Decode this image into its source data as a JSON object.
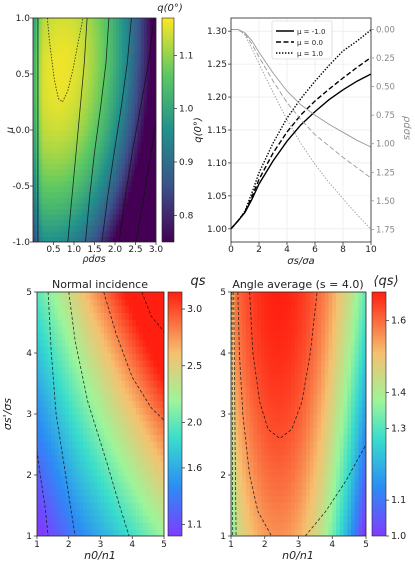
{
  "chart_data": [
    {
      "type": "heatmap",
      "xlabel": "ρdσs",
      "ylabel": "μ",
      "colorbar_label": "q(0°)",
      "xlim": [
        0.0,
        3.0
      ],
      "ylim": [
        -1.0,
        1.0
      ],
      "x_ticks": [
        "0.5",
        "1.0",
        "1.5",
        "2.0",
        "2.5",
        "3.0"
      ],
      "y_ticks": [
        "-1.0",
        "-0.5",
        "0.0",
        "0.5",
        "1.0"
      ],
      "colorbar_range": [
        0.75,
        1.17
      ],
      "colorbar_ticks": [
        "0.8",
        "0.9",
        "1.0",
        "1.1"
      ],
      "colormap": "viridis",
      "contour_minimum": {
        "x": 0.7,
        "y": 0.25,
        "value": 1.15
      }
    },
    {
      "type": "line",
      "xlabel": "σs/σa",
      "ylabel": "q(0°)",
      "ylabel_right": "ρdσs",
      "xlim": [
        0,
        10
      ],
      "ylim": [
        0.98,
        1.32
      ],
      "ylim_right": [
        1.86,
        -0.1
      ],
      "x_ticks": [
        "0",
        "2",
        "4",
        "6",
        "8",
        "10"
      ],
      "y_ticks": [
        "1.00",
        "1.05",
        "1.10",
        "1.15",
        "1.20",
        "1.25",
        "1.30"
      ],
      "y_ticks_right": [
        "0.00",
        "0.25",
        "0.50",
        "0.75",
        "1.00",
        "1.25",
        "1.50",
        "1.75"
      ],
      "grid": true,
      "legend_position": "top-center",
      "x": [
        0,
        0.5,
        1,
        1.5,
        2,
        3,
        4,
        5,
        6,
        7,
        8,
        9,
        10
      ],
      "series": [
        {
          "name": "μ = -1.0",
          "style": "solid",
          "axis": "left",
          "values": [
            1.0,
            1.012,
            1.025,
            1.045,
            1.068,
            1.103,
            1.133,
            1.158,
            1.178,
            1.196,
            1.211,
            1.224,
            1.235
          ]
        },
        {
          "name": "μ = 0.0",
          "style": "dashed",
          "axis": "left",
          "values": [
            1.0,
            1.012,
            1.026,
            1.049,
            1.075,
            1.115,
            1.147,
            1.173,
            1.194,
            1.212,
            1.229,
            1.245,
            1.26
          ]
        },
        {
          "name": "μ = 1.0",
          "style": "dotted",
          "axis": "left",
          "values": [
            1.0,
            1.012,
            1.027,
            1.055,
            1.085,
            1.13,
            1.168,
            1.198,
            1.224,
            1.248,
            1.27,
            1.285,
            1.302
          ]
        },
        {
          "name": "",
          "style": "solid",
          "axis": "right",
          "color": "#999999",
          "values": [
            0.0,
            0.0,
            0.03,
            0.1,
            0.2,
            0.38,
            0.54,
            0.66,
            0.75,
            0.83,
            0.9,
            0.97,
            1.03
          ]
        },
        {
          "name": "",
          "style": "dashed",
          "axis": "right",
          "color": "#999999",
          "values": [
            0.0,
            0.0,
            0.04,
            0.13,
            0.24,
            0.45,
            0.64,
            0.79,
            0.92,
            1.02,
            1.12,
            1.21,
            1.3
          ]
        },
        {
          "name": "",
          "style": "dotted",
          "axis": "right",
          "color": "#999999",
          "values": [
            0.0,
            0.0,
            0.05,
            0.17,
            0.3,
            0.55,
            0.79,
            1.0,
            1.18,
            1.34,
            1.48,
            1.62,
            1.75
          ]
        }
      ]
    },
    {
      "type": "heatmap",
      "title": "Normal incidence",
      "xlabel": "n0/n1",
      "ylabel": "σs'/σs",
      "colorbar_label": "qs",
      "xlim": [
        1,
        5
      ],
      "ylim": [
        1,
        5
      ],
      "x_ticks": [
        "1",
        "2",
        "3",
        "4",
        "5"
      ],
      "y_ticks": [
        "1",
        "2",
        "3",
        "4",
        "5"
      ],
      "colorbar_range": [
        1.0,
        3.15
      ],
      "colorbar_ticks": [
        "1.1",
        "1.6",
        "2.0",
        "2.5",
        "3.0"
      ],
      "colormap": "rainbow"
    },
    {
      "type": "heatmap",
      "title": "Angle average (s = 4.0)",
      "xlabel": "n0/n1",
      "colorbar_label": "⟨qs⟩",
      "xlim": [
        1,
        5
      ],
      "ylim": [
        1,
        5
      ],
      "x_ticks": [
        "1",
        "2",
        "3",
        "4",
        "5"
      ],
      "y_ticks": [
        "1",
        "2",
        "3",
        "4",
        "5"
      ],
      "colorbar_range": [
        1.0,
        1.68
      ],
      "colorbar_ticks": [
        "1.0",
        "1.1",
        "1.3",
        "1.4",
        "1.6"
      ],
      "colormap": "rainbow",
      "contour_minimum": {
        "x": 2.4,
        "y": 2.6
      }
    }
  ]
}
